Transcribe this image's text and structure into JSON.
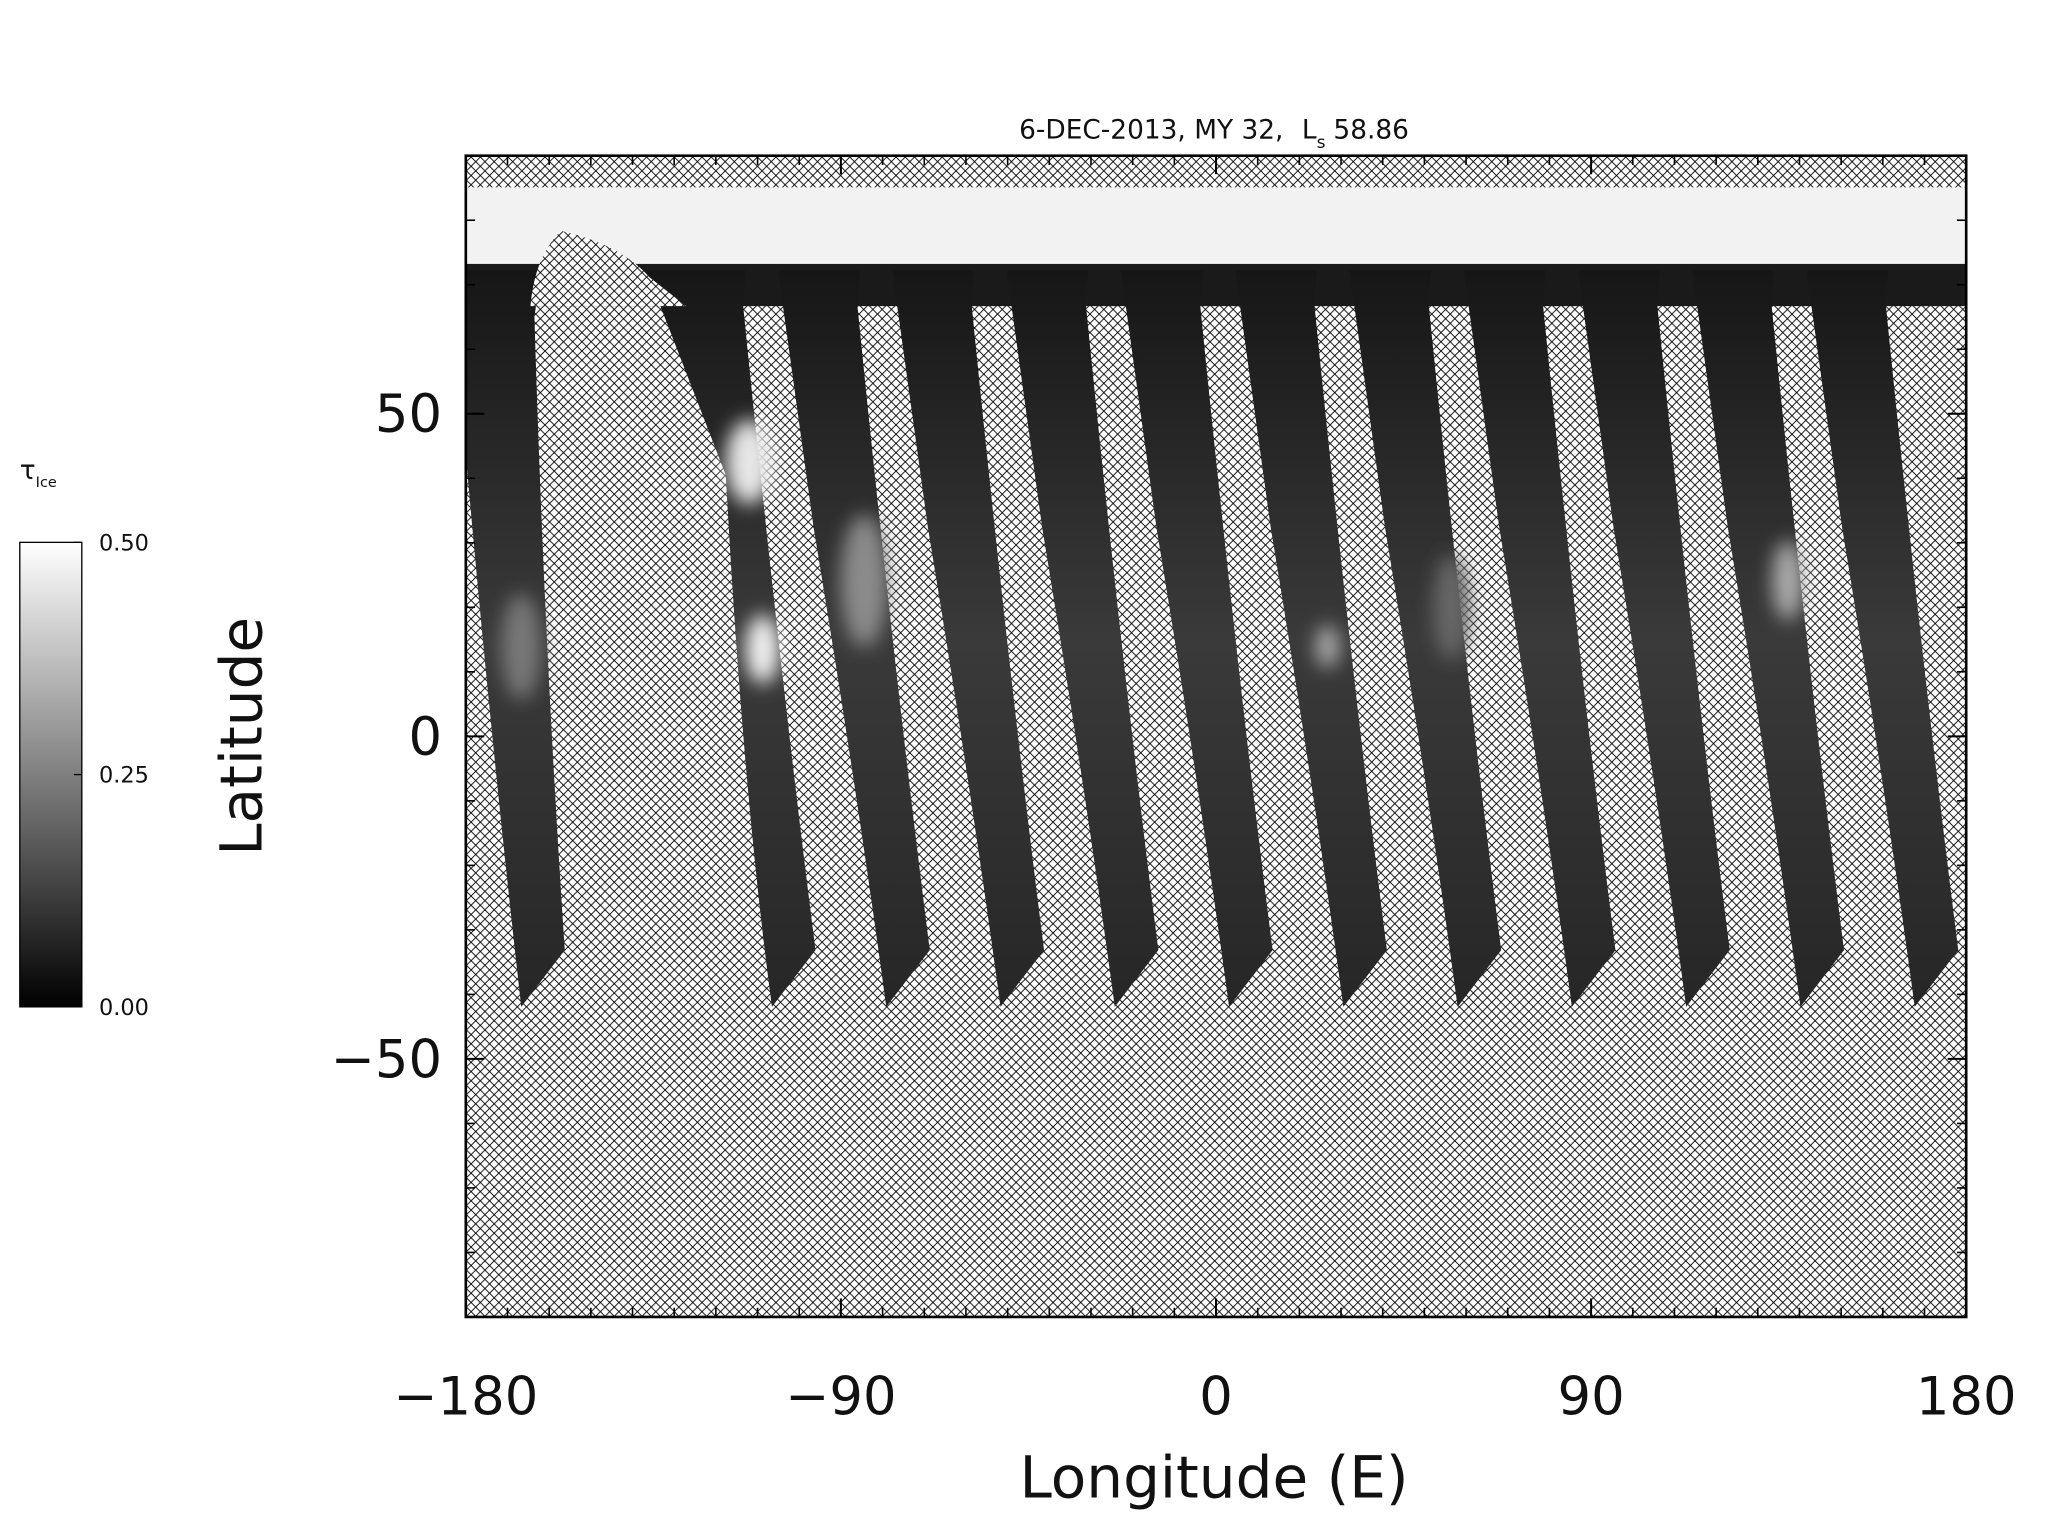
{
  "chart_data": {
    "type": "map",
    "title": "6-DEC-2013, MY 32,",
    "title_ls": {
      "symbol": "L",
      "subscript": "s",
      "value": 58.86
    },
    "xlabel": "Longitude (E)",
    "ylabel": "Latitude",
    "xlim": [
      -180,
      180
    ],
    "ylim": [
      -90,
      90
    ],
    "xticks": [
      {
        "value": -180,
        "label": "−180"
      },
      {
        "value": -90,
        "label": "−90"
      },
      0,
      90,
      180
    ],
    "yticks": [
      {
        "value": -50,
        "label": "−50"
      },
      0,
      50
    ],
    "xminorticks": [
      -170,
      -160,
      -150,
      -140,
      -130,
      -120,
      -110,
      -100,
      -80,
      -70,
      -60,
      -50,
      -40,
      -30,
      -20,
      -10,
      10,
      20,
      30,
      40,
      50,
      60,
      70,
      80,
      100,
      110,
      120,
      130,
      140,
      150,
      160,
      170
    ],
    "yminorticks": [
      -80,
      -70,
      -60,
      -40,
      -30,
      -20,
      -10,
      10,
      20,
      30,
      40,
      60,
      70,
      80
    ],
    "colorbar": {
      "title": "τ",
      "title_subscript": "Ice",
      "range": [
        0,
        0.5
      ],
      "colors": [
        "#000000",
        "#ffffff"
      ],
      "ticks": [
        {
          "value": 0.5,
          "label": "0.50"
        },
        {
          "value": 0.25,
          "label": "0.25"
        },
        {
          "value": 0,
          "label": "0.00"
        }
      ]
    }
  }
}
